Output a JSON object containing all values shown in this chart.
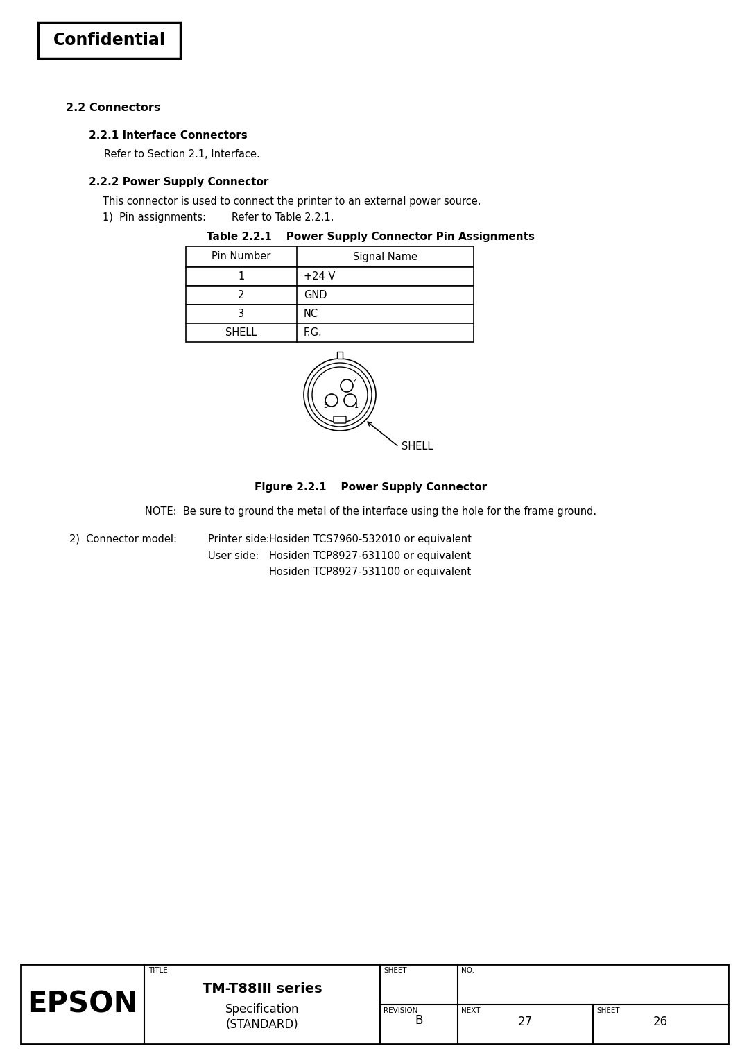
{
  "bg_color": "#ffffff",
  "confidential_text": "Confidential",
  "section_22": "2.2 Connectors",
  "section_221": "2.2.1 Interface Connectors",
  "text_221": "Refer to Section 2.1, Interface.",
  "section_222": "2.2.2 Power Supply Connector",
  "text_222": "This connector is used to connect the printer to an external power source.",
  "text_pin": "1)  Pin assignments:        Refer to Table 2.2.1.",
  "table_title": "Table 2.2.1    Power Supply Connector Pin Assignments",
  "table_headers": [
    "Pin Number",
    "Signal Name"
  ],
  "table_rows": [
    [
      "1",
      "+24 V"
    ],
    [
      "2",
      "GND"
    ],
    [
      "3",
      "NC"
    ],
    [
      "SHELL",
      "F.G."
    ]
  ],
  "figure_caption": "Figure 2.2.1    Power Supply Connector",
  "note_text": "NOTE:  Be sure to ground the metal of the interface using the hole for the frame ground.",
  "connector_model_label": "2)  Connector model:",
  "printer_side_label": "Printer side:",
  "printer_side_value": "Hosiden TCS7960-532010 or equivalent",
  "user_side_label": "User side:",
  "user_side_value1": "Hosiden TCP8927-631100 or equivalent",
  "user_side_value2": "Hosiden TCP8927-531100 or equivalent",
  "shell_label": "SHELL",
  "epson_text": "EPSON",
  "title_text": "TM-T88III series",
  "subtitle_text": "Specification",
  "subtitle2_text": "(STANDARD)",
  "sheet_label": "SHEET",
  "revision_label": "REVISION",
  "title_label": "TITLE",
  "no_label": "NO.",
  "next_label": "NEXT",
  "sheet_label2": "SHEET",
  "next_value": "27",
  "sheet_value": "26",
  "revision_value": "B"
}
